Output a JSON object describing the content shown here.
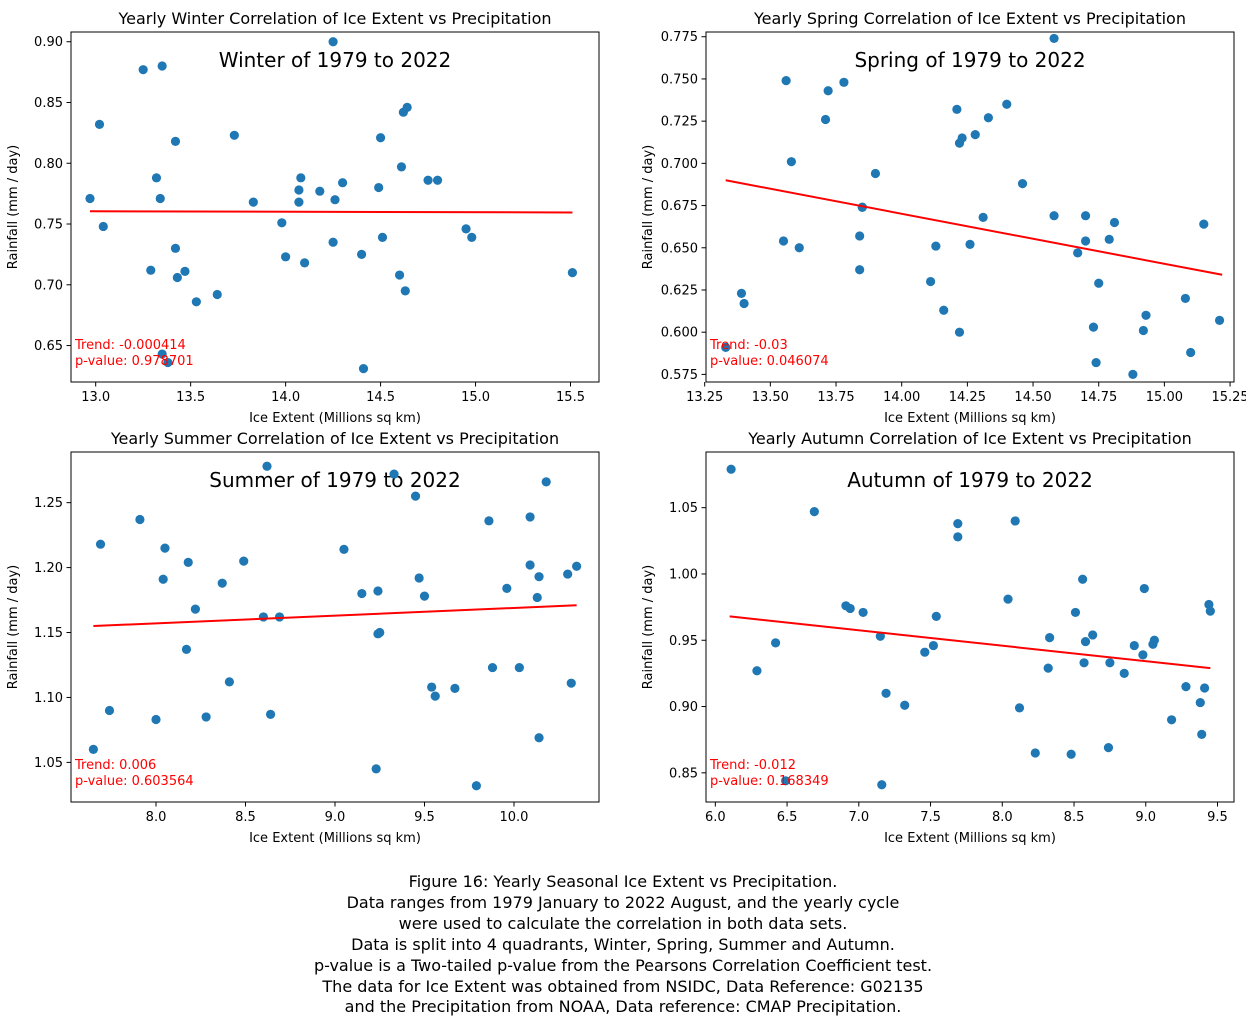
{
  "chart_data": [
    {
      "type": "scatter",
      "title": "Yearly Winter Correlation of Ice Extent vs Precipitation",
      "annotation": "Winter of 1979 to 2022",
      "xlabel": "Ice Extent (Millions sq km)",
      "ylabel": "Rainfall (mm / day)",
      "xlim": [
        12.87,
        15.65
      ],
      "ylim": [
        0.62,
        0.908
      ],
      "xticks": [
        "13.0",
        "13.5",
        "14.0",
        "14.5",
        "15.0",
        "15.5"
      ],
      "yticks": [
        "0.65",
        "0.70",
        "0.75",
        "0.80",
        "0.85",
        "0.90"
      ],
      "trend_text": "Trend: -0.000414",
      "pvalue_text": "p-value: 0.978701",
      "trendline": {
        "x": [
          12.97,
          15.51
        ],
        "y": [
          0.7605,
          0.7595
        ]
      },
      "point_color": "#1f77b4",
      "trend_color": "#ff0000",
      "series": [
        {
          "x": [
            12.97,
            13.02,
            13.04,
            13.25,
            13.29,
            13.32,
            13.34,
            13.35,
            13.35,
            13.38,
            13.42,
            13.42,
            13.43,
            13.47,
            13.53,
            13.64,
            13.73,
            13.83,
            13.98,
            14.0,
            14.07,
            14.07,
            14.08,
            14.1,
            14.18,
            14.25,
            14.25,
            14.26,
            14.3,
            14.4,
            14.41,
            14.49,
            14.5,
            14.51,
            14.6,
            14.61,
            14.62,
            14.63,
            14.64,
            14.75,
            14.8,
            14.95,
            14.98,
            15.51
          ],
          "y": [
            0.771,
            0.832,
            0.748,
            0.877,
            0.712,
            0.788,
            0.771,
            0.88,
            0.643,
            0.636,
            0.818,
            0.73,
            0.706,
            0.711,
            0.686,
            0.692,
            0.823,
            0.768,
            0.751,
            0.723,
            0.768,
            0.778,
            0.788,
            0.718,
            0.777,
            0.9,
            0.735,
            0.77,
            0.784,
            0.725,
            0.631,
            0.78,
            0.821,
            0.739,
            0.708,
            0.797,
            0.842,
            0.695,
            0.846,
            0.786,
            0.786,
            0.746,
            0.739,
            0.71
          ]
        }
      ]
    },
    {
      "type": "scatter",
      "title": "Yearly Spring Correlation of Ice Extent vs Precipitation",
      "annotation": "Spring of 1979 to 2022",
      "xlabel": "Ice Extent (Millions sq km)",
      "ylabel": "Rainfall (mm / day)",
      "xlim": [
        13.255,
        15.265
      ],
      "ylim": [
        0.5705,
        0.7778
      ],
      "xticks": [
        "13.25",
        "13.50",
        "13.75",
        "14.00",
        "14.25",
        "14.50",
        "14.75",
        "15.00",
        "15.25"
      ],
      "yticks": [
        "0.575",
        "0.600",
        "0.625",
        "0.650",
        "0.675",
        "0.700",
        "0.725",
        "0.750",
        "0.775"
      ],
      "trend_text": "Trend: -0.03",
      "pvalue_text": "p-value: 0.046074",
      "trendline": {
        "x": [
          13.33,
          15.22
        ],
        "y": [
          0.69,
          0.634
        ]
      },
      "point_color": "#1f77b4",
      "trend_color": "#ff0000",
      "series": [
        {
          "x": [
            13.33,
            13.39,
            13.4,
            13.55,
            13.56,
            13.58,
            13.61,
            13.71,
            13.72,
            13.78,
            13.84,
            13.84,
            13.85,
            13.85,
            13.9,
            14.11,
            14.13,
            14.16,
            14.21,
            14.22,
            14.22,
            14.23,
            14.26,
            14.28,
            14.31,
            14.33,
            14.4,
            14.46,
            14.58,
            14.58,
            14.67,
            14.7,
            14.7,
            14.73,
            14.74,
            14.75,
            14.79,
            14.81,
            14.88,
            14.92,
            14.93,
            15.08,
            15.1,
            15.15,
            15.21
          ],
          "y": [
            0.591,
            0.623,
            0.617,
            0.654,
            0.749,
            0.701,
            0.65,
            0.726,
            0.743,
            0.748,
            0.637,
            0.657,
            0.674,
            0.674,
            0.694,
            0.63,
            0.651,
            0.613,
            0.732,
            0.6,
            0.712,
            0.715,
            0.652,
            0.717,
            0.668,
            0.727,
            0.735,
            0.688,
            0.669,
            0.774,
            0.647,
            0.669,
            0.654,
            0.603,
            0.582,
            0.629,
            0.655,
            0.665,
            0.575,
            0.601,
            0.61,
            0.62,
            0.588,
            0.664,
            0.607
          ]
        }
      ]
    },
    {
      "type": "scatter",
      "title": "Yearly Summer Correlation of Ice Extent vs Precipitation",
      "annotation": "Summer of 1979 to 2022",
      "xlabel": "Ice Extent (Millions sq km)",
      "ylabel": "Rainfall (mm / day)",
      "xlim": [
        7.525,
        10.475
      ],
      "ylim": [
        1.0195,
        1.289
      ],
      "xticks": [
        "8.0",
        "8.5",
        "9.0",
        "9.5",
        "10.0"
      ],
      "yticks": [
        "1.05",
        "1.10",
        "1.15",
        "1.20",
        "1.25"
      ],
      "trend_text": "Trend: 0.006",
      "pvalue_text": "p-value: 0.603564",
      "trendline": {
        "x": [
          7.65,
          10.35
        ],
        "y": [
          1.155,
          1.171
        ]
      },
      "point_color": "#1f77b4",
      "trend_color": "#ff0000",
      "series": [
        {
          "x": [
            7.65,
            7.69,
            7.74,
            7.91,
            8.0,
            8.04,
            8.05,
            8.17,
            8.18,
            8.22,
            8.28,
            8.37,
            8.41,
            8.49,
            8.6,
            8.62,
            8.64,
            8.69,
            9.05,
            9.15,
            9.23,
            9.24,
            9.24,
            9.25,
            9.33,
            9.45,
            9.47,
            9.5,
            9.54,
            9.56,
            9.67,
            9.79,
            9.86,
            9.88,
            9.96,
            10.03,
            10.09,
            10.09,
            10.13,
            10.14,
            10.14,
            10.18,
            10.3,
            10.32,
            10.35
          ],
          "y": [
            1.06,
            1.218,
            1.09,
            1.237,
            1.083,
            1.191,
            1.215,
            1.137,
            1.204,
            1.168,
            1.085,
            1.188,
            1.112,
            1.205,
            1.162,
            1.278,
            1.087,
            1.162,
            1.214,
            1.18,
            1.045,
            1.149,
            1.182,
            1.15,
            1.272,
            1.255,
            1.192,
            1.178,
            1.108,
            1.101,
            1.107,
            1.032,
            1.236,
            1.123,
            1.184,
            1.123,
            1.239,
            1.202,
            1.177,
            1.069,
            1.193,
            1.266,
            1.195,
            1.111,
            1.201
          ]
        }
      ]
    },
    {
      "type": "scatter",
      "title": "Yearly Autumn Correlation of Ice Extent vs Precipitation",
      "annotation": "Autumn of 1979 to 2022",
      "xlabel": "Ice Extent (Millions sq km)",
      "ylabel": "Rainfall (mm / day)",
      "xlim": [
        5.935,
        9.615
      ],
      "ylim": [
        0.828,
        1.092
      ],
      "xticks": [
        "6.0",
        "6.5",
        "7.0",
        "7.5",
        "8.0",
        "8.5",
        "9.0",
        "9.5"
      ],
      "yticks": [
        "0.85",
        "0.90",
        "0.95",
        "1.00",
        "1.05"
      ],
      "trend_text": "Trend: -0.012",
      "pvalue_text": "p-value: 0.168349",
      "trendline": {
        "x": [
          6.1,
          9.45
        ],
        "y": [
          0.968,
          0.929
        ]
      },
      "point_color": "#1f77b4",
      "trend_color": "#ff0000",
      "series": [
        {
          "x": [
            6.11,
            6.29,
            6.42,
            6.49,
            6.69,
            6.91,
            6.94,
            7.03,
            7.15,
            7.16,
            7.19,
            7.32,
            7.46,
            7.52,
            7.54,
            7.69,
            7.69,
            8.04,
            8.09,
            8.12,
            8.23,
            8.32,
            8.33,
            8.48,
            8.51,
            8.56,
            8.57,
            8.58,
            8.63,
            8.74,
            8.75,
            8.85,
            8.92,
            8.98,
            8.99,
            9.05,
            9.06,
            9.18,
            9.28,
            9.38,
            9.39,
            9.41,
            9.44,
            9.45
          ],
          "y": [
            1.079,
            0.927,
            0.948,
            0.844,
            1.047,
            0.976,
            0.974,
            0.971,
            0.953,
            0.841,
            0.91,
            0.901,
            0.941,
            0.946,
            0.968,
            1.038,
            1.028,
            0.981,
            1.04,
            0.899,
            0.865,
            0.929,
            0.952,
            0.864,
            0.971,
            0.996,
            0.933,
            0.949,
            0.954,
            0.869,
            0.933,
            0.925,
            0.946,
            0.939,
            0.989,
            0.947,
            0.95,
            0.89,
            0.915,
            0.903,
            0.879,
            0.914,
            0.977,
            0.972
          ]
        }
      ]
    }
  ],
  "caption": {
    "lines": [
      "Figure 16: Yearly Seasonal Ice Extent vs Precipitation.",
      "Data ranges from 1979 January to 2022 August, and the yearly cycle",
      "were used to calculate the correlation in both data sets.",
      "Data is split into 4 quadrants, Winter, Spring, Summer and Autumn.",
      "p-value is a Two-tailed p-value from the Pearsons Correlation Coefficient test.",
      "The data for Ice Extent was obtained from NSIDC, Data Reference: G02135",
      "and the Precipitation from NOAA, Data reference: CMAP Precipitation."
    ]
  }
}
